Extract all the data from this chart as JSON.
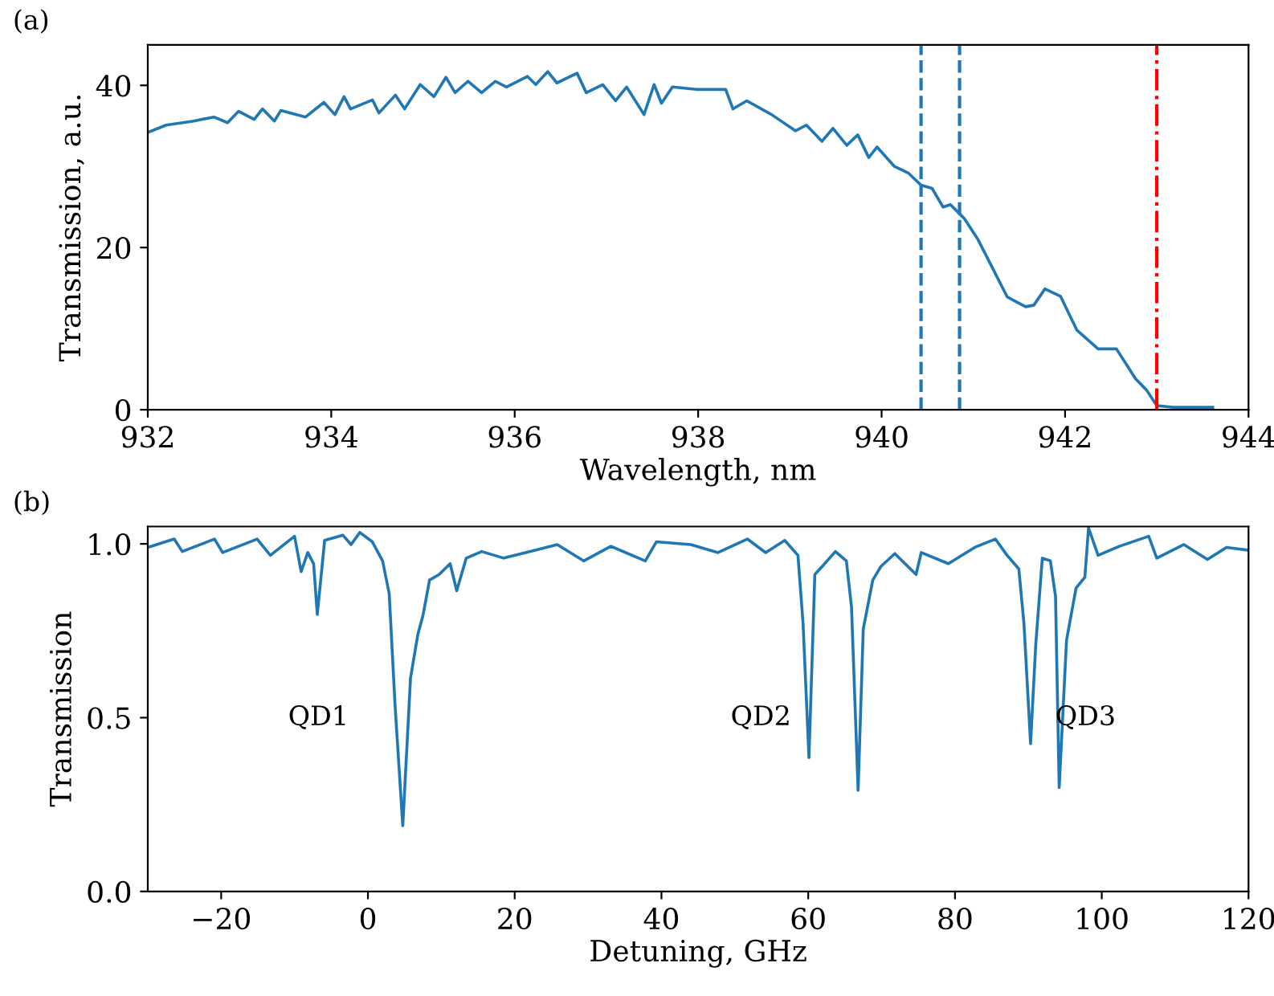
{
  "chart_data": [
    {
      "type": "line",
      "xlabel": "Wavelength, nm",
      "ylabel": "Transmission, a.u.",
      "annotations": [
        "(a)"
      ],
      "xlim": [
        932,
        944
      ],
      "xticks": [
        932,
        934,
        936,
        938,
        940,
        942,
        944
      ],
      "ylim": [
        0,
        45
      ],
      "yticks": [
        0,
        20,
        40
      ],
      "grid": false,
      "series": [
        {
          "color": "#1f77b4",
          "x": [
            932,
            932.2,
            932.5,
            932.72,
            932.87,
            932.99,
            933.16,
            933.25,
            933.38,
            933.45,
            933.72,
            933.92,
            934.04,
            934.14,
            934.21,
            934.45,
            934.52,
            934.7,
            934.8,
            934.97,
            935.12,
            935.25,
            935.35,
            935.49,
            935.64,
            935.79,
            935.91,
            936.14,
            936.23,
            936.36,
            936.46,
            936.68,
            936.78,
            936.96,
            937.1,
            937.22,
            937.41,
            937.52,
            937.6,
            937.72,
            937.98,
            938.3,
            938.38,
            938.53,
            938.8,
            939.06,
            939.18,
            939.35,
            939.47,
            939.62,
            939.74,
            939.86,
            939.95,
            940.14,
            940.29,
            940.43,
            940.55,
            940.67,
            940.75,
            940.9,
            941.05,
            941.19,
            941.37,
            941.57,
            941.66,
            941.78,
            941.95,
            942.13,
            942.36,
            942.56,
            942.77,
            942.89,
            943.0,
            943.18,
            943.61
          ],
          "values": [
            34.2,
            35.1,
            35.6,
            36.1,
            35.4,
            36.8,
            35.8,
            37.1,
            35.6,
            36.9,
            36.1,
            37.9,
            36.4,
            38.6,
            37.1,
            38.2,
            36.6,
            38.8,
            37.1,
            40.1,
            38.6,
            41.0,
            39.1,
            40.5,
            39.1,
            40.5,
            39.8,
            41.1,
            40.1,
            41.7,
            40.3,
            41.5,
            39.1,
            40.1,
            38.1,
            39.8,
            36.4,
            40.1,
            37.8,
            39.8,
            39.5,
            39.5,
            37.1,
            38.1,
            36.4,
            34.4,
            35.1,
            33.1,
            34.7,
            32.6,
            33.9,
            31.1,
            32.4,
            30.0,
            29.2,
            27.7,
            27.3,
            25.0,
            25.3,
            23.6,
            21.0,
            17.9,
            13.9,
            12.7,
            12.9,
            14.9,
            14.0,
            9.8,
            7.5,
            7.5,
            3.8,
            2.4,
            0.5,
            0.3,
            0.3
          ]
        }
      ],
      "ref_lines": [
        {
          "axis": "x",
          "value": 940.43,
          "color": "#1f77b4",
          "line_style": "dashed"
        },
        {
          "axis": "x",
          "value": 940.85,
          "color": "#1f77b4",
          "line_style": "dashed"
        },
        {
          "axis": "x",
          "value": 943.0,
          "color": "#ff0000",
          "line_style": "dashdot"
        }
      ]
    },
    {
      "type": "line",
      "xlabel": "Detuning, GHz",
      "ylabel": "Transmission",
      "xlim": [
        -30,
        120
      ],
      "xticks": [
        {
          "value": -20,
          "label": "−20"
        },
        0,
        20,
        40,
        60,
        80,
        100,
        120
      ],
      "ylim": [
        0,
        1.05
      ],
      "yticks": [
        {
          "value": 0,
          "label": "0.0"
        },
        0.5,
        {
          "value": 1,
          "label": "1.0"
        }
      ],
      "grid": false,
      "annotations": [
        "(b)",
        "QD1",
        "QD2",
        "QD3"
      ],
      "series": [
        {
          "color": "#1f77b4",
          "x": [
            -30,
            -26.4,
            -25.3,
            -20.9,
            -19.8,
            -15.1,
            -13.3,
            -10.0,
            -9.1,
            -8.2,
            -7.4,
            -6.9,
            -5.9,
            -3.4,
            -2.3,
            -1.1,
            0.6,
            2.0,
            2.9,
            3.7,
            4.75,
            5.8,
            6.8,
            7.5,
            8.4,
            9.7,
            11.2,
            12.1,
            13.4,
            15.5,
            18.5,
            22.8,
            25.8,
            29.4,
            33.1,
            37.8,
            39.3,
            44.0,
            47.7,
            51.7,
            54.2,
            56.8,
            58.6,
            59.3,
            60.1,
            60.9,
            61.9,
            63.7,
            65.2,
            65.9,
            66.8,
            67.5,
            68.8,
            69.9,
            71.8,
            74.7,
            75.4,
            79.1,
            82.7,
            85.5,
            87.1,
            88.7,
            89.4,
            90.3,
            91.0,
            91.9,
            93.0,
            93.7,
            94.2,
            95.2,
            96.5,
            97.7,
            98.2,
            99.5,
            102.4,
            106.4,
            107.5,
            111.2,
            114.4,
            117.0,
            119.9
          ],
          "values": [
            0.99,
            1.014,
            0.978,
            1.014,
            0.975,
            1.014,
            0.967,
            1.022,
            0.92,
            0.975,
            0.943,
            0.797,
            1.01,
            1.025,
            0.998,
            1.033,
            1.006,
            0.951,
            0.857,
            0.534,
            0.189,
            0.613,
            0.739,
            0.794,
            0.896,
            0.912,
            0.943,
            0.865,
            0.959,
            0.978,
            0.959,
            0.982,
            0.998,
            0.951,
            0.993,
            0.951,
            1.006,
            0.998,
            0.975,
            1.014,
            0.975,
            1.01,
            0.967,
            0.77,
            0.385,
            0.912,
            0.935,
            0.978,
            0.951,
            0.818,
            0.291,
            0.755,
            0.896,
            0.935,
            0.972,
            0.912,
            0.975,
            0.943,
            0.99,
            1.014,
            0.967,
            0.928,
            0.77,
            0.425,
            0.708,
            0.959,
            0.951,
            0.849,
            0.299,
            0.723,
            0.873,
            0.904,
            1.046,
            0.967,
            0.993,
            1.022,
            0.959,
            0.998,
            0.955,
            0.99,
            0.982
          ]
        }
      ]
    }
  ]
}
